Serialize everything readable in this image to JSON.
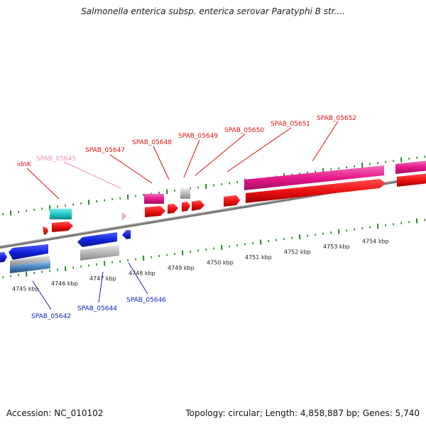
{
  "title": "Salmonella enterica subsp. enterica serovar Paratyphi B str....",
  "footer": {
    "accession": "Accession: NC_010102",
    "summary": "Topology: circular; Length: 4,858,887 bp; Genes: 5,740"
  },
  "colors": {
    "forward_cds": "#ee1111",
    "forward_pseudo": "#e8188c",
    "forward_misc": "#22c8c8",
    "reverse_cds": "#1122dd",
    "reverse_misc": "#4a86c0",
    "grey_feature": "#b0b0b0",
    "backbone": "#808080",
    "tick": "#228822",
    "label_forward": "#dd1111",
    "label_pink": "#f090b8",
    "label_reverse": "#1122bb"
  },
  "axis_ticks": [
    {
      "label": "4745 kbp"
    },
    {
      "label": "4746 kbp"
    },
    {
      "label": "4747 kbp"
    },
    {
      "label": "4748 kbp"
    },
    {
      "label": "4749 kbp"
    },
    {
      "label": "4750 kbp"
    },
    {
      "label": "4751 kbp"
    },
    {
      "label": "4752 kbp"
    },
    {
      "label": "4753 kbp"
    },
    {
      "label": "4754 kbp"
    }
  ],
  "gene_labels": [
    {
      "text": "idnK",
      "strand": "forward"
    },
    {
      "text": "SPAB_05645",
      "strand": "forward-pink"
    },
    {
      "text": "SPAB_05647",
      "strand": "forward"
    },
    {
      "text": "SPAB_05648",
      "strand": "forward"
    },
    {
      "text": "SPAB_05649",
      "strand": "forward"
    },
    {
      "text": "SPAB_05650",
      "strand": "forward"
    },
    {
      "text": "SPAB_05651",
      "strand": "forward"
    },
    {
      "text": "SPAB_05652",
      "strand": "forward"
    },
    {
      "text": "SPAB_05642",
      "strand": "reverse"
    },
    {
      "text": "SPAB_05644",
      "strand": "reverse"
    },
    {
      "text": "SPAB_05646",
      "strand": "reverse"
    }
  ]
}
